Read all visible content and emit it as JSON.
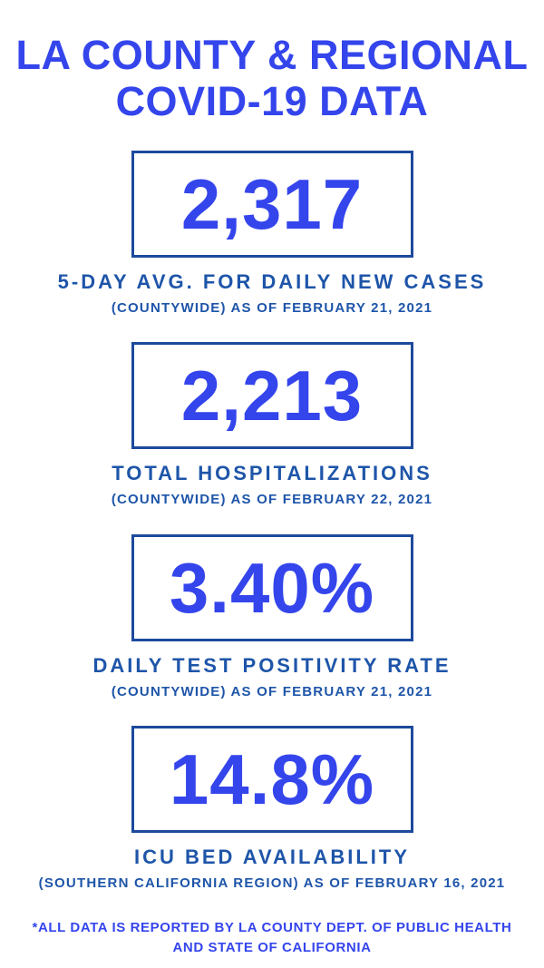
{
  "colors": {
    "accent": "#3445ec",
    "label_blue": "#1e55a9",
    "box_border_blue": "#1c4a9c",
    "background": "#ffffff"
  },
  "title": {
    "line1": "LA COUNTY & REGIONAL",
    "line2": "COVID-19 DATA"
  },
  "stats": [
    {
      "value": "2,317",
      "label": "5-DAY AVG. FOR DAILY NEW CASES",
      "sublabel": "(COUNTYWIDE) AS OF FEBRUARY 21, 2021"
    },
    {
      "value": "2,213",
      "label": "TOTAL HOSPITALIZATIONS",
      "sublabel": "(COUNTYWIDE) AS OF FEBRUARY 22, 2021"
    },
    {
      "value": "3.40%",
      "label": "DAILY TEST POSITIVITY RATE",
      "sublabel": "(COUNTYWIDE) AS OF FEBRUARY 21, 2021"
    },
    {
      "value": "14.8%",
      "label": "ICU BED AVAILABILITY",
      "sublabel": "(SOUTHERN CALIFORNIA REGION) AS OF FEBRUARY 16, 2021"
    }
  ],
  "footer": {
    "line1": "*ALL DATA IS REPORTED BY LA COUNTY DEPT. OF PUBLIC HEALTH",
    "line2": "AND STATE OF CALIFORNIA"
  }
}
